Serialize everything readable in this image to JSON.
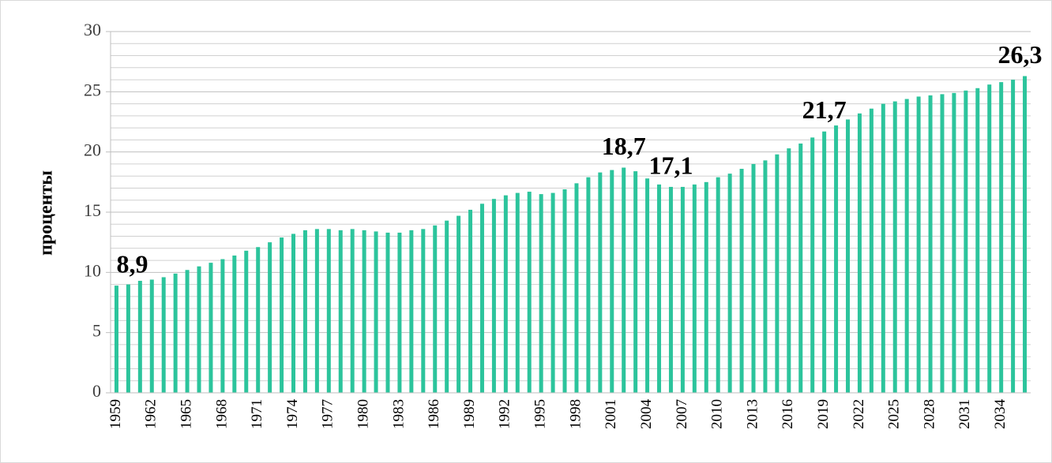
{
  "chart_data": {
    "type": "bar",
    "y_label": "проценты",
    "categories": [
      "1959",
      null,
      null,
      "1962",
      null,
      null,
      "1965",
      null,
      null,
      "1968",
      null,
      null,
      "1971",
      null,
      null,
      "1974",
      null,
      null,
      "1977",
      null,
      null,
      "1980",
      null,
      null,
      "1983",
      null,
      null,
      "1986",
      null,
      null,
      "1989",
      null,
      null,
      "1992",
      null,
      null,
      "1995",
      null,
      null,
      "1998",
      null,
      null,
      "2001",
      null,
      null,
      "2004",
      null,
      null,
      "2007",
      null,
      null,
      "2010",
      null,
      null,
      "2013",
      null,
      null,
      "2016",
      null,
      null,
      "2019",
      null,
      null,
      "2022",
      null,
      null,
      "2025",
      null,
      null,
      "2028",
      null,
      null,
      "2031",
      null,
      null,
      "2034",
      null,
      null
    ],
    "values": [
      8.9,
      9.0,
      9.3,
      9.4,
      9.6,
      9.9,
      10.2,
      10.5,
      10.8,
      11.1,
      11.4,
      11.8,
      12.1,
      12.5,
      12.9,
      13.2,
      13.5,
      13.6,
      13.6,
      13.5,
      13.6,
      13.5,
      13.4,
      13.3,
      13.3,
      13.5,
      13.6,
      13.9,
      14.3,
      14.7,
      15.2,
      15.7,
      16.1,
      16.4,
      16.6,
      16.7,
      16.5,
      16.6,
      16.9,
      17.4,
      17.9,
      18.3,
      18.5,
      18.7,
      18.4,
      17.8,
      17.3,
      17.1,
      17.1,
      17.3,
      17.5,
      17.9,
      18.2,
      18.6,
      19.0,
      19.3,
      19.8,
      20.3,
      20.7,
      21.2,
      21.7,
      22.2,
      22.7,
      23.2,
      23.6,
      24.0,
      24.2,
      24.4,
      24.6,
      24.7,
      24.8,
      24.9,
      25.1,
      25.3,
      25.6,
      25.8,
      26.0,
      26.3
    ],
    "value_labels": [
      "8,9",
      null,
      null,
      null,
      null,
      null,
      null,
      null,
      null,
      null,
      null,
      null,
      null,
      null,
      null,
      null,
      null,
      null,
      null,
      null,
      null,
      null,
      null,
      null,
      null,
      null,
      null,
      null,
      null,
      null,
      null,
      null,
      null,
      null,
      null,
      null,
      null,
      null,
      null,
      null,
      null,
      null,
      null,
      "18,7",
      null,
      null,
      null,
      "17,1",
      null,
      null,
      null,
      null,
      null,
      null,
      null,
      null,
      null,
      null,
      null,
      null,
      "21,7",
      null,
      null,
      null,
      null,
      null,
      null,
      null,
      null,
      null,
      null,
      null,
      null,
      null,
      null,
      null,
      null,
      "26,3"
    ],
    "color": "#2cc49c",
    "ylim": [
      0,
      30
    ],
    "yticks": [
      0,
      5,
      10,
      15,
      20,
      25,
      30
    ],
    "minor_yticks": [
      1,
      2,
      3,
      4,
      6,
      7,
      8,
      9,
      11,
      12,
      13,
      14,
      16,
      17,
      18,
      19,
      21,
      22,
      23,
      24,
      26,
      27,
      28,
      29
    ],
    "grid": true
  }
}
